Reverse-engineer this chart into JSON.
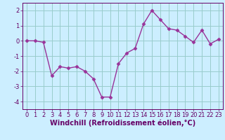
{
  "x": [
    0,
    1,
    2,
    3,
    4,
    5,
    6,
    7,
    8,
    9,
    10,
    11,
    12,
    13,
    14,
    15,
    16,
    17,
    18,
    19,
    20,
    21,
    22,
    23
  ],
  "y": [
    0.0,
    0.0,
    -0.1,
    -2.3,
    -1.7,
    -1.8,
    -1.7,
    -2.0,
    -2.5,
    -3.7,
    -3.7,
    -1.5,
    -0.8,
    -0.5,
    1.1,
    2.0,
    1.4,
    0.8,
    0.7,
    0.3,
    -0.1,
    0.7,
    -0.2,
    0.1
  ],
  "line_color": "#993399",
  "marker": "D",
  "marker_size": 2.5,
  "bg_color": "#cceeff",
  "grid_color": "#99cccc",
  "xlabel": "Windchill (Refroidissement éolien,°C)",
  "xlabel_color": "#660066",
  "xlabel_fontsize": 7,
  "xlim": [
    -0.5,
    23.5
  ],
  "ylim": [
    -4.5,
    2.5
  ],
  "yticks": [
    -4,
    -3,
    -2,
    -1,
    0,
    1,
    2
  ],
  "xticks": [
    0,
    1,
    2,
    3,
    4,
    5,
    6,
    7,
    8,
    9,
    10,
    11,
    12,
    13,
    14,
    15,
    16,
    17,
    18,
    19,
    20,
    21,
    22,
    23
  ],
  "tick_fontsize": 6,
  "tick_color": "#660066",
  "spine_color": "#660066",
  "linewidth": 1.0
}
